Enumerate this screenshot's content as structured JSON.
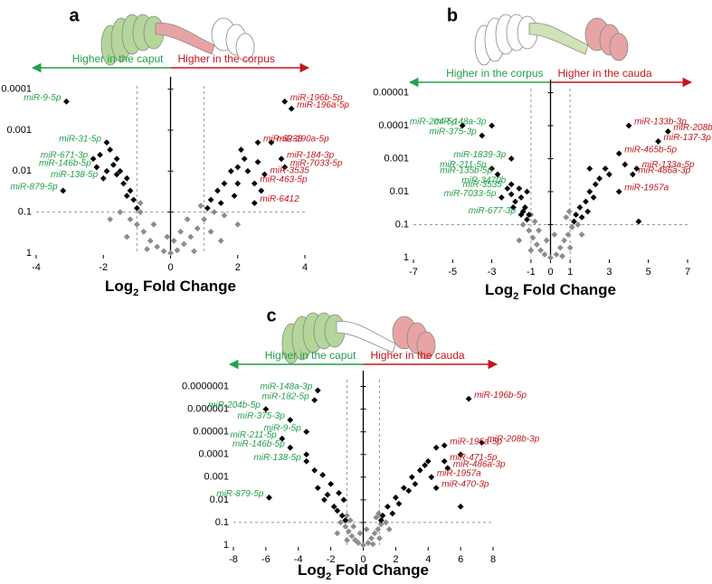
{
  "chart_data": [
    {
      "type": "scatter",
      "panel": "a",
      "arrows": [
        "Higher in the caput",
        "Higher in the corpus"
      ],
      "label_colors": [
        "#22a04a",
        "#c4161c"
      ],
      "xlabel": [
        "Log",
        "2",
        " Fold Change"
      ],
      "xlim": [
        -4,
        4
      ],
      "xticks": [
        -4,
        -2,
        0,
        2,
        4
      ],
      "ylim": [
        1,
        5e-05
      ],
      "yticks": [
        0.0001,
        0.001,
        0.01,
        0.1,
        1
      ],
      "log": true,
      "vlines": [
        -1,
        1
      ],
      "hline": 0.1,
      "series": [
        {
          "color": "#000000",
          "x": [
            -3.1,
            -1.9,
            -2.3,
            -2.2,
            -2.0,
            -3.2,
            3.4,
            3.6,
            2.6,
            3.0,
            3.3,
            3.4,
            2.8,
            2.5,
            2.5,
            -1.8,
            -1.6,
            -1.7,
            -1.5,
            -1.3,
            -1.4,
            -1.2,
            -1.1,
            -1.6,
            -2.1,
            -1.9,
            -1.3,
            -1.0,
            1.2,
            1.4,
            1.6,
            1.8,
            2.0,
            2.2,
            1.5,
            2.0,
            2.3,
            1.9,
            2.6,
            2.1,
            1.1,
            2.7
          ],
          "values": [
            0.0002,
            0.002,
            0.005,
            0.008,
            0.015,
            0.03,
            0.0002,
            0.0003,
            0.002,
            0.002,
            0.005,
            0.008,
            0.012,
            0.02,
            0.06,
            0.003,
            0.005,
            0.007,
            0.01,
            0.015,
            0.02,
            0.03,
            0.05,
            0.012,
            0.004,
            0.01,
            0.04,
            0.08,
            0.05,
            0.03,
            0.02,
            0.01,
            0.008,
            0.005,
            0.06,
            0.02,
            0.01,
            0.04,
            0.006,
            0.003,
            0.08,
            0.03
          ]
        },
        {
          "color": "#8c8c8c",
          "x": [
            -1.5,
            -1.2,
            -1.0,
            -0.8,
            -0.6,
            -0.4,
            -0.2,
            0,
            0.2,
            0.4,
            0.6,
            0.8,
            1.0,
            1.3,
            1.6,
            -0.9,
            -0.5,
            0.5,
            1.2,
            -1.3,
            0.1,
            -0.1,
            0.9,
            -0.9,
            1.5,
            -0.7,
            0.7,
            -1.8,
            2.0,
            0.3
          ],
          "values": [
            0.1,
            0.15,
            0.2,
            0.3,
            0.5,
            0.7,
            0.9,
            1,
            0.85,
            0.6,
            0.4,
            0.25,
            0.15,
            0.1,
            0.12,
            0.1,
            0.2,
            0.15,
            0.3,
            0.4,
            0.5,
            0.4,
            0.07,
            0.06,
            0.5,
            0.8,
            0.9,
            0.15,
            0.2,
            0.3
          ]
        }
      ],
      "annotations": [
        {
          "text": "miR-9-5p",
          "x": -3.1,
          "y": 0.0002
        },
        {
          "text": "miR-31-5p",
          "x": -1.9,
          "y": 0.002
        },
        {
          "text": "miR-671-3p",
          "x": -2.3,
          "y": 0.005
        },
        {
          "text": "miR-146b-5p",
          "x": -2.2,
          "y": 0.008
        },
        {
          "text": "miR-138-5p",
          "x": -2.0,
          "y": 0.015
        },
        {
          "text": "miR-879-5p",
          "x": -3.2,
          "y": 0.03
        },
        {
          "text": "miR-196b-5p",
          "x": 3.4,
          "y": 0.0002
        },
        {
          "text": "miR-196a-5p",
          "x": 3.6,
          "y": 0.0003
        },
        {
          "text": "miR-6238",
          "x": 2.6,
          "y": 0.002
        },
        {
          "text": "miR-190a-5p",
          "x": 3.0,
          "y": 0.002
        },
        {
          "text": "miR-184-3p",
          "x": 3.3,
          "y": 0.005
        },
        {
          "text": "miR-7033-5p",
          "x": 3.4,
          "y": 0.008
        },
        {
          "text": "miR-3535",
          "x": 2.8,
          "y": 0.012
        },
        {
          "text": "miR-463-5p",
          "x": 2.5,
          "y": 0.02
        },
        {
          "text": "miR-6412",
          "x": 2.5,
          "y": 0.06
        }
      ]
    },
    {
      "type": "scatter",
      "panel": "b",
      "arrows": [
        "Higher in the corpus",
        "Higher in the cauda"
      ],
      "label_colors": [
        "#22a04a",
        "#c4161c"
      ],
      "xlabel": [
        "Log",
        "2",
        " Fold Change"
      ],
      "xlim": [
        -7,
        7
      ],
      "xticks": [
        -7,
        -5,
        -3,
        -1,
        0,
        1,
        3,
        5,
        7
      ],
      "ylim": [
        1,
        4e-06
      ],
      "yticks": [
        1e-05,
        0.0001,
        0.001,
        0.01,
        0.1,
        1
      ],
      "log": true,
      "vlines": [
        -1,
        1
      ],
      "hline": 0.1,
      "series": [
        {
          "color": "#000000",
          "x": [
            -4.5,
            -3.0,
            -3.5,
            -2.0,
            -3.0,
            -2.7,
            -2.0,
            -2.2,
            -2.5,
            -1.5,
            4.0,
            6.0,
            5.5,
            3.5,
            4.4,
            4.2,
            3.5,
            4.5,
            -1.2,
            -1.5,
            -1.8,
            -1.3,
            -1.1,
            -2.0,
            -1.6,
            -1.4,
            -1.9,
            -1.2,
            1.3,
            1.5,
            1.8,
            2.0,
            2.3,
            2.5,
            1.6,
            2.2,
            2.8,
            3.0,
            1.2,
            1.9,
            3.8,
            2.0
          ],
          "values": [
            0.0001,
            0.0001,
            0.0002,
            0.001,
            0.002,
            0.003,
            0.006,
            0.008,
            0.015,
            0.05,
            0.0001,
            0.00015,
            0.0003,
            0.0007,
            0.002,
            0.003,
            0.01,
            0.08,
            0.01,
            0.015,
            0.02,
            0.03,
            0.05,
            0.012,
            0.008,
            0.04,
            0.03,
            0.07,
            0.05,
            0.03,
            0.02,
            0.01,
            0.006,
            0.004,
            0.06,
            0.015,
            0.002,
            0.003,
            0.08,
            0.04,
            0.0015,
            0.002
          ]
        },
        {
          "color": "#8c8c8c",
          "x": [
            -1.4,
            -1.1,
            -0.9,
            -0.7,
            -0.5,
            -0.3,
            0,
            0.3,
            0.5,
            0.7,
            0.9,
            1.1,
            1.4,
            -0.8,
            0.8,
            -1.0,
            0.95,
            -0.2,
            0.2,
            1.6,
            -1.6,
            0.6,
            -0.6,
            1.0,
            -1.0
          ],
          "values": [
            0.1,
            0.15,
            0.25,
            0.4,
            0.6,
            0.8,
            1,
            0.8,
            0.5,
            0.3,
            0.2,
            0.12,
            0.1,
            0.08,
            0.06,
            0.05,
            0.04,
            0.3,
            0.2,
            0.2,
            0.3,
            0.9,
            0.15,
            0.5,
            0.6
          ]
        }
      ],
      "annotations": [
        {
          "text": "miR-204-5p",
          "x": -4.5,
          "y": 0.0001
        },
        {
          "text": "miR-148a-3p",
          "x": -3.0,
          "y": 0.0001
        },
        {
          "text": "miR-375-3p",
          "x": -3.5,
          "y": 0.0002
        },
        {
          "text": "miR-1839-3p",
          "x": -2.0,
          "y": 0.001
        },
        {
          "text": "miR-211-5p",
          "x": -3.0,
          "y": 0.002
        },
        {
          "text": "miR-135b-5p",
          "x": -2.7,
          "y": 0.003
        },
        {
          "text": "miR-3470b",
          "x": -2.0,
          "y": 0.006
        },
        {
          "text": "miR-3535",
          "x": -2.2,
          "y": 0.008
        },
        {
          "text": "miR-7033-5p",
          "x": -2.5,
          "y": 0.015
        },
        {
          "text": "miR-677-3p",
          "x": -1.5,
          "y": 0.05
        },
        {
          "text": "miR-133b-3p",
          "x": 4.0,
          "y": 0.0001
        },
        {
          "text": "miR-208b-3p",
          "x": 6.0,
          "y": 0.00015
        },
        {
          "text": "miR-137-3p",
          "x": 5.5,
          "y": 0.0003
        },
        {
          "text": "miR-465b-5p",
          "x": 3.5,
          "y": 0.0007
        },
        {
          "text": "miR-133a-5p",
          "x": 4.4,
          "y": 0.002
        },
        {
          "text": "miR-486a-3p",
          "x": 4.2,
          "y": 0.003
        },
        {
          "text": "miR-1957a",
          "x": 3.5,
          "y": 0.01
        }
      ]
    },
    {
      "type": "scatter",
      "panel": "c",
      "arrows": [
        "Higher in the caput",
        "Higher in the cauda"
      ],
      "label_colors": [
        "#22a04a",
        "#c4161c"
      ],
      "xlabel": [
        "Log",
        "2",
        " Fold Change"
      ],
      "xlim": [
        -8,
        8
      ],
      "xticks": [
        -8,
        -6,
        -4,
        -2,
        0,
        2,
        4,
        6,
        8
      ],
      "ylim": [
        1,
        2e-08
      ],
      "yticks": [
        {
          "value": 1e-07,
          "label": "0.0000001"
        },
        1e-06,
        1e-05,
        0.0001,
        0.001,
        0.01,
        0.1,
        1
      ],
      "log": true,
      "vlines": [
        -1,
        1
      ],
      "hline": 0.1,
      "series": [
        {
          "color": "#000000",
          "x": [
            -2.8,
            -3.0,
            -6.0,
            -4.5,
            -3.5,
            -5.0,
            -4.5,
            -3.5,
            -5.8,
            6.5,
            5.0,
            7.3,
            5.0,
            5.2,
            4.2,
            4.5,
            6.0,
            -1.2,
            -1.5,
            -2.0,
            -2.5,
            -1.8,
            -1.3,
            -2.2,
            -3.0,
            -1.6,
            -2.8,
            -1.1,
            -3.5,
            -2.4,
            1.2,
            1.5,
            2.0,
            2.5,
            3.0,
            3.5,
            4.0,
            1.8,
            2.2,
            2.8,
            3.2,
            1.1,
            4.5,
            3.8,
            6.0
          ],
          "values": [
            1.5e-07,
            4e-07,
            1e-06,
            3e-06,
            1e-05,
            2e-05,
            5e-05,
            0.0002,
            0.008,
            3.5e-07,
            4e-05,
            3e-05,
            0.0002,
            0.0004,
            0.001,
            0.003,
            0.02,
            0.01,
            0.005,
            0.002,
            0.0008,
            0.02,
            0.05,
            0.006,
            0.0005,
            0.03,
            0.003,
            0.08,
            0.0001,
            0.01,
            0.05,
            0.02,
            0.008,
            0.003,
            0.001,
            0.0005,
            0.0002,
            0.04,
            0.015,
            0.004,
            0.002,
            0.08,
            5e-05,
            0.0003,
            0.0001
          ]
        },
        {
          "color": "#8c8c8c",
          "x": [
            -1.4,
            -1.1,
            -0.9,
            -0.7,
            -0.5,
            -0.3,
            0,
            0.3,
            0.5,
            0.7,
            0.9,
            1.1,
            1.4,
            -0.8,
            0.8,
            -1.0,
            0.95,
            -0.2,
            0.2,
            1.6,
            -1.6,
            0.6,
            -0.6,
            1.0,
            -1.0
          ],
          "values": [
            0.1,
            0.15,
            0.25,
            0.4,
            0.6,
            0.8,
            1,
            0.8,
            0.5,
            0.3,
            0.2,
            0.12,
            0.1,
            0.08,
            0.06,
            0.05,
            0.04,
            0.3,
            0.2,
            0.2,
            0.3,
            0.9,
            0.15,
            0.5,
            0.6
          ]
        }
      ],
      "annotations": [
        {
          "text": "miR-148a-3p",
          "x": -2.8,
          "y": 1.5e-07
        },
        {
          "text": "miR-182-5p",
          "x": -3.0,
          "y": 4e-07
        },
        {
          "text": "miR-204b-5p",
          "x": -6.0,
          "y": 1e-06
        },
        {
          "text": "miR-375-3p",
          "x": -4.5,
          "y": 3e-06
        },
        {
          "text": "miR-9-5p",
          "x": -3.5,
          "y": 1e-05
        },
        {
          "text": "miR-211-5p",
          "x": -5.0,
          "y": 2e-05
        },
        {
          "text": "miR-146b-5p",
          "x": -4.5,
          "y": 5e-05
        },
        {
          "text": "miR-138-5p",
          "x": -3.5,
          "y": 0.0002
        },
        {
          "text": "miR-879-5p",
          "x": -5.8,
          "y": 0.008
        },
        {
          "text": "miR-196b-5p",
          "x": 6.5,
          "y": 3.5e-07
        },
        {
          "text": "miR-196a-5p",
          "x": 5.0,
          "y": 4e-05
        },
        {
          "text": "miR-208b-3p",
          "x": 7.3,
          "y": 3e-05
        },
        {
          "text": "miR-471-5p",
          "x": 5.0,
          "y": 0.0002
        },
        {
          "text": "miR-486a-3p",
          "x": 5.2,
          "y": 0.0004
        },
        {
          "text": "miR-1957a",
          "x": 4.2,
          "y": 0.001
        },
        {
          "text": "miR-470-3p",
          "x": 4.5,
          "y": 0.003
        }
      ]
    }
  ]
}
